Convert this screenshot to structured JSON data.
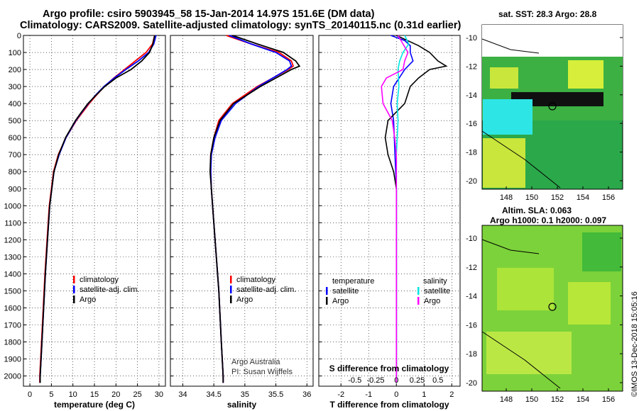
{
  "titles": {
    "line1": "Argo profile: csiro 5903945_58 15-Jan-2014 14.97S 151.6E (DM data)",
    "line2": "Climatology: CARS2009. Satellite-adjusted climatology: synTS_20140115.nc (0.31d earlier)"
  },
  "colors": {
    "climatology": "#ff0000",
    "satellite": "#0000ff",
    "argo": "#000000",
    "sat_salinity": "#00e5e5",
    "argo_salinity": "#ff00ff"
  },
  "chart_data": [
    {
      "type": "line",
      "name": "temperature",
      "xlabel": "temperature (deg C)",
      "xlim": [
        -1.5,
        31.5
      ],
      "xticks": [
        "0",
        "5",
        "10",
        "15",
        "20",
        "25",
        "30"
      ],
      "ylim": [
        0,
        2060
      ],
      "yticks": [
        "0",
        "100",
        "200",
        "300",
        "400",
        "500",
        "600",
        "700",
        "800",
        "900",
        "1000",
        "1100",
        "1200",
        "1300",
        "1400",
        "1500",
        "1600",
        "1700",
        "1800",
        "1900",
        "2000"
      ],
      "legend": [
        "climatology",
        "satellite-adj. clim.",
        "Argo"
      ],
      "series": [
        {
          "name": "climatology",
          "depth": [
            0,
            50,
            100,
            150,
            200,
            250,
            300,
            350,
            400,
            450,
            500,
            600,
            700,
            800,
            1000,
            1200,
            1400,
            1600,
            1800,
            2000,
            2040
          ],
          "values": [
            29,
            28.5,
            27,
            24.5,
            22,
            19.5,
            17.3,
            15.5,
            13.8,
            12.3,
            10.8,
            8.4,
            6.6,
            5.5,
            4.5,
            4,
            3.5,
            3.1,
            2.7,
            2.3,
            2.3
          ]
        },
        {
          "name": "satellite-adj. clim.",
          "depth": [
            0,
            50,
            100,
            150,
            200,
            250,
            300,
            350,
            400,
            450,
            500,
            600,
            700,
            800,
            1000,
            1200,
            1400,
            1600,
            1800,
            2000,
            2040
          ],
          "values": [
            29.3,
            28.8,
            27.6,
            25.2,
            22.3,
            19.6,
            17.2,
            15.3,
            13.6,
            12.1,
            10.7,
            8.4,
            6.8,
            5.6,
            4.6,
            4.1,
            3.6,
            3.2,
            2.8,
            2.4,
            2.4
          ]
        },
        {
          "name": "Argo",
          "depth": [
            0,
            50,
            100,
            150,
            200,
            250,
            300,
            350,
            400,
            450,
            500,
            600,
            700,
            800,
            1000,
            1200,
            1400,
            1600,
            1800,
            2000,
            2040
          ],
          "values": [
            29,
            28.6,
            27.8,
            26,
            23.5,
            20,
            17.4,
            15.4,
            13.5,
            12,
            10.6,
            8.3,
            6.7,
            5.6,
            4.6,
            4.1,
            3.6,
            3.2,
            2.8,
            2.4,
            2.4
          ]
        }
      ]
    },
    {
      "type": "line",
      "name": "salinity",
      "xlabel": "salinity",
      "xlim": [
        33.8,
        36.1
      ],
      "xticks": [
        "34",
        "34.5",
        "35",
        "35.5",
        "36"
      ],
      "ylim": [
        0,
        2060
      ],
      "legend": [
        "climatology",
        "satellite-adj. clim.",
        "Argo"
      ],
      "series": [
        {
          "name": "climatology",
          "depth": [
            0,
            50,
            100,
            150,
            180,
            200,
            250,
            300,
            400,
            500,
            600,
            700,
            800,
            900,
            1000,
            1200,
            1500,
            1800,
            2000,
            2040
          ],
          "values": [
            34.7,
            35.1,
            35.55,
            35.75,
            35.78,
            35.7,
            35.45,
            35.2,
            34.8,
            34.58,
            34.5,
            34.45,
            34.45,
            34.46,
            34.48,
            34.52,
            34.58,
            34.62,
            34.65,
            34.65
          ]
        },
        {
          "name": "satellite-adj. clim.",
          "depth": [
            0,
            50,
            100,
            150,
            180,
            200,
            250,
            300,
            400,
            500,
            600,
            700,
            800,
            900,
            1000,
            1200,
            1500,
            1800,
            2000,
            2040
          ],
          "values": [
            34.75,
            35.1,
            35.5,
            35.72,
            35.75,
            35.68,
            35.45,
            35.22,
            34.85,
            34.62,
            34.52,
            34.46,
            34.45,
            34.46,
            34.48,
            34.52,
            34.58,
            34.62,
            34.65,
            34.65
          ]
        },
        {
          "name": "Argo",
          "depth": [
            0,
            50,
            100,
            150,
            180,
            200,
            250,
            300,
            400,
            500,
            600,
            700,
            800,
            900,
            1000,
            1200,
            1500,
            1800,
            2000,
            2040
          ],
          "values": [
            34.8,
            35.2,
            35.62,
            35.82,
            35.88,
            35.75,
            35.5,
            35.25,
            34.82,
            34.6,
            34.5,
            34.45,
            34.44,
            34.46,
            34.48,
            34.52,
            34.58,
            34.62,
            34.65,
            34.65
          ]
        }
      ],
      "annotations": [
        "Argo Australia",
        "PI: Susan Wijffels"
      ]
    },
    {
      "type": "line",
      "name": "difference",
      "xlabel": "T difference from climatology",
      "xlabel2": "S difference from climatology",
      "xlim": [
        -2.8,
        2.3
      ],
      "xticks": [
        "-2",
        "-1",
        "0",
        "1",
        "2"
      ],
      "xticks2": [
        "-0.5",
        "-0.25",
        "0",
        "0.25",
        "0.5"
      ],
      "ylim": [
        0,
        2060
      ],
      "legend_left_title": "temperature",
      "legend_right_title": "salinity",
      "legend": [
        "satellite",
        "Argo",
        "satellite",
        "Argo"
      ],
      "series": [
        {
          "name": "T satellite",
          "depth": [
            0,
            30,
            60,
            100,
            150,
            200,
            300,
            400,
            500,
            700,
            900,
            1200,
            1600,
            2000,
            2040
          ],
          "values": [
            -0.2,
            0.3,
            0.5,
            0.5,
            0.6,
            0.3,
            -0.1,
            -0.2,
            -0.1,
            -0.05,
            0,
            0,
            0,
            0,
            0
          ]
        },
        {
          "name": "T Argo",
          "depth": [
            0,
            30,
            60,
            100,
            150,
            180,
            200,
            250,
            300,
            400,
            500,
            600,
            700,
            800,
            900,
            1000,
            1200,
            1600,
            2000,
            2040
          ],
          "values": [
            0,
            0.4,
            0.8,
            1.2,
            1.5,
            1.8,
            1.2,
            0.8,
            0.5,
            0.3,
            -0.3,
            -0.4,
            -0.3,
            -0.1,
            0,
            0,
            0,
            0,
            0,
            0
          ]
        },
        {
          "name": "S satellite",
          "depth": [
            0,
            50,
            100,
            150,
            200,
            300,
            400,
            500,
            700,
            1000,
            1500,
            2000,
            2040
          ],
          "values": [
            0.1,
            0.15,
            0.08,
            0.04,
            0.02,
            0.03,
            0.01,
            0.02,
            0,
            0,
            0,
            0,
            0
          ]
        },
        {
          "name": "S Argo",
          "depth": [
            0,
            50,
            100,
            150,
            200,
            250,
            300,
            400,
            500,
            600,
            700,
            1000,
            1500,
            2000,
            2040
          ],
          "values": [
            0.02,
            0.08,
            0.14,
            0.1,
            0.08,
            -0.12,
            -0.18,
            -0.16,
            -0.05,
            -0.02,
            0,
            0,
            0,
            0,
            0
          ]
        }
      ],
      "annotations": []
    }
  ],
  "maps": {
    "sst": {
      "title": "sat. SST: 28.3  Argo: 28.8",
      "yticks": [
        "-10",
        "-12",
        "-14",
        "-16",
        "-18",
        "-20"
      ],
      "xticks": [
        "148",
        "150",
        "152",
        "154",
        "156"
      ]
    },
    "sla": {
      "title1": "Altim. SLA: 0.063",
      "title2": "Argo h1000: 0.1  h2000: 0.097",
      "yticks": [
        "-10",
        "-12",
        "-14",
        "-16",
        "-18",
        "-20"
      ],
      "xticks": [
        "148",
        "150",
        "152",
        "154",
        "156"
      ]
    }
  },
  "credit": "©IMOS 13-Dec-2018 15:05:16"
}
